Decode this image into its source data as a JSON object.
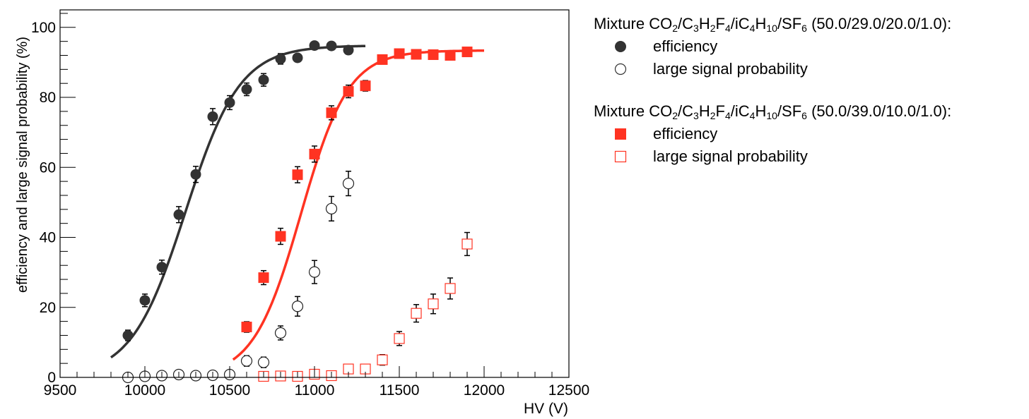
{
  "chart_data": {
    "type": "scatter",
    "xlabel": "HV (V)",
    "ylabel": "efficiency and large signal probability (%)",
    "xlim": [
      9500,
      12500
    ],
    "ylim": [
      0,
      105
    ],
    "xticks": [
      9500,
      10000,
      10500,
      11000,
      11500,
      12000,
      12500
    ],
    "xtick_labels": [
      "9500",
      "10000",
      "10500",
      "11000",
      "11500",
      "12000",
      "12500"
    ],
    "yticks": [
      0,
      20,
      40,
      60,
      80,
      100
    ],
    "ytick_labels": [
      "0",
      "20",
      "40",
      "60",
      "80",
      "100"
    ],
    "legend_position": "right",
    "mixtures": [
      {
        "title_parts": [
          "Mixture CO",
          "2",
          "/C",
          "3",
          "H",
          "2",
          "F",
          "4",
          "/iC",
          "4",
          "H",
          "10",
          "/SF",
          "6",
          " (50.0/29.0/20.0/1.0):"
        ],
        "color": "#333333",
        "marker": "circle",
        "efficiency": {
          "name": "efficiency",
          "x": [
            9900,
            10000,
            10100,
            10200,
            10300,
            10400,
            10500,
            10600,
            10700,
            10800,
            10900,
            11000,
            11100,
            11200
          ],
          "y": [
            12,
            22,
            31.5,
            46.5,
            58,
            74.5,
            78.5,
            82.3,
            85,
            91,
            91.3,
            94.8,
            94.7,
            93.5
          ],
          "err": [
            1.5,
            1.8,
            2.0,
            2.3,
            2.3,
            2.3,
            2.0,
            1.8,
            1.8,
            1.5,
            1.0,
            1.0,
            0.8,
            0.8
          ]
        },
        "fit": {
          "x_start": 9800,
          "x_end": 11300,
          "plateau": 94.8,
          "midpoint": 10240,
          "slope": 160
        },
        "large_signal": {
          "name": "large signal probability",
          "x": [
            9900,
            10000,
            10100,
            10200,
            10300,
            10400,
            10500,
            10600,
            10700,
            10800,
            10900,
            11000,
            11100,
            11200
          ],
          "y": [
            0,
            0.3,
            0.5,
            0.8,
            0.5,
            0.6,
            0.8,
            4.7,
            4.3,
            12.7,
            20.3,
            30.1,
            48.2,
            55.4
          ],
          "err": [
            0.5,
            0.8,
            0.8,
            1.2,
            1.0,
            1.0,
            1.2,
            1.5,
            1.5,
            2.0,
            2.8,
            3.3,
            3.5,
            3.5
          ]
        }
      },
      {
        "title_parts": [
          "Mixture CO",
          "2",
          "/C",
          "3",
          "H",
          "2",
          "F",
          "4",
          "/iC",
          "4",
          "H",
          "10",
          "/SF",
          "6",
          " (50.0/39.0/10.0/1.0):"
        ],
        "color": "#ff3322",
        "marker": "square",
        "efficiency": {
          "name": "efficiency",
          "x": [
            10600,
            10700,
            10800,
            10900,
            11000,
            11100,
            11200,
            11300,
            11400,
            11500,
            11600,
            11700,
            11800,
            11900
          ],
          "y": [
            14.4,
            28.5,
            40.3,
            57.9,
            63.8,
            75.6,
            81.7,
            83.3,
            90.8,
            92.5,
            92.3,
            92.2,
            92.0,
            93.0
          ],
          "err": [
            1.5,
            2.0,
            2.3,
            2.3,
            2.3,
            2.0,
            1.8,
            1.5,
            1.0,
            1.0,
            1.0,
            1.0,
            0.8,
            0.8
          ]
        },
        "fit": {
          "x_start": 10520,
          "x_end": 12000,
          "plateau": 93.4,
          "midpoint": 10920,
          "slope": 140
        },
        "large_signal": {
          "name": "large signal probability",
          "x": [
            10700,
            10800,
            10900,
            11000,
            11100,
            11200,
            11300,
            11400,
            11500,
            11600,
            11700,
            11800,
            11900
          ],
          "y": [
            0.3,
            0.4,
            0.3,
            0.9,
            0.5,
            2.4,
            2.4,
            5.0,
            11.1,
            18.3,
            21.0,
            25.4,
            38.1
          ],
          "err": [
            0.5,
            0.5,
            0.5,
            0.8,
            0.8,
            1.0,
            1.0,
            1.5,
            2.0,
            2.5,
            2.8,
            3.0,
            3.3
          ]
        }
      }
    ]
  }
}
